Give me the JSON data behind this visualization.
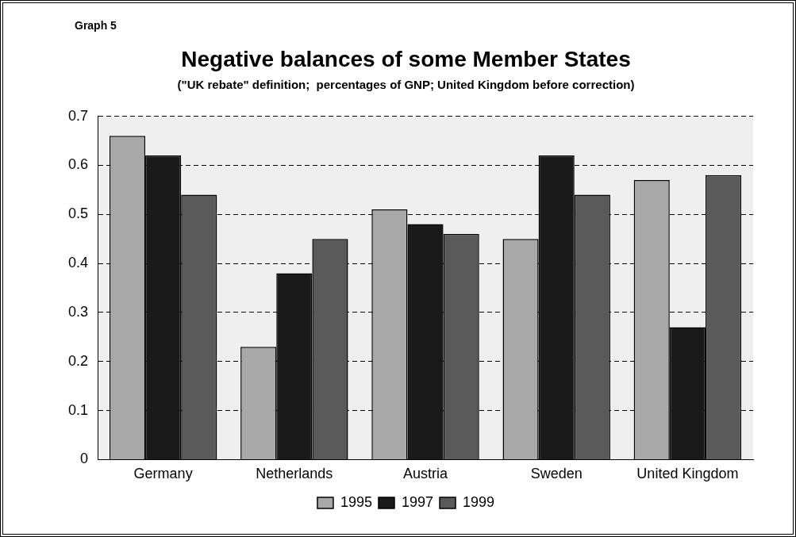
{
  "chart_data": {
    "type": "bar",
    "title": "Negative balances of some Member States",
    "subtitle": "(\"UK rebate\" definition;  percentages of GNP; United Kingdom before correction)",
    "annotations": [
      "Graph 5"
    ],
    "categories": [
      "Germany",
      "Netherlands",
      "Austria",
      "Sweden",
      "United Kingdom"
    ],
    "series": [
      {
        "name": "1995",
        "color": "#a8a8a8",
        "values": [
          0.66,
          0.23,
          0.51,
          0.45,
          0.57
        ]
      },
      {
        "name": "1997",
        "color": "#1a1a1a",
        "values": [
          0.62,
          0.38,
          0.48,
          0.62,
          0.27
        ]
      },
      {
        "name": "1999",
        "color": "#5a5a5a",
        "values": [
          0.54,
          0.45,
          0.46,
          0.54,
          0.58
        ]
      }
    ],
    "ylim": [
      0,
      0.7
    ],
    "yticks": [
      0,
      0.1,
      0.2,
      0.3,
      0.4,
      0.5,
      0.6,
      0.7
    ],
    "grid": "y",
    "legend": "bottom"
  }
}
